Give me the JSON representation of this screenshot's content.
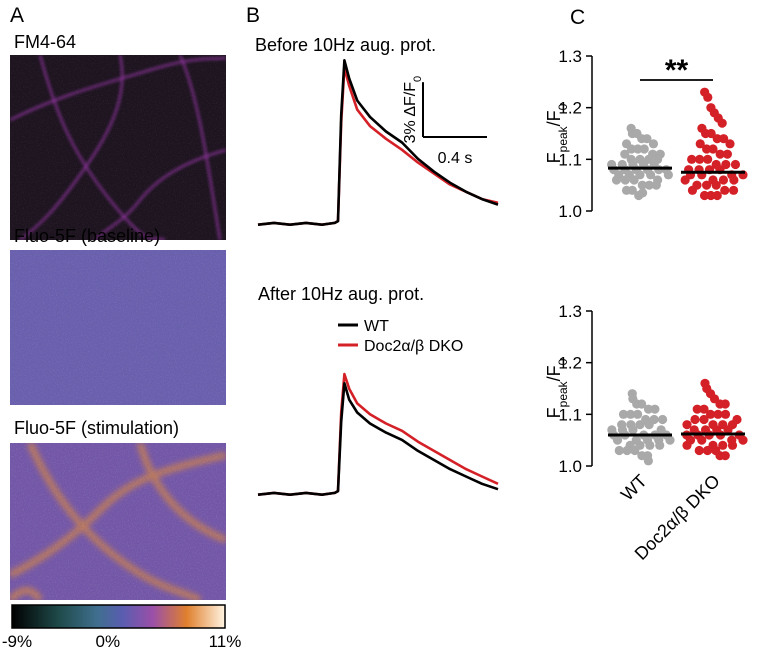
{
  "panels": {
    "a": "A",
    "b": "B",
    "c": "C"
  },
  "images": [
    {
      "title": "FM4-64"
    },
    {
      "title": "Fluo-5F (baseline)"
    },
    {
      "title": "Fluo-5F (stimulation)"
    }
  ],
  "colorbar": {
    "lim": [
      -9,
      11
    ],
    "ticks": [
      {
        "value": -9,
        "label": "-9%"
      },
      {
        "value": 0,
        "label": "0%"
      },
      {
        "value": 11,
        "label": "11%"
      }
    ]
  },
  "chart_data": [
    {
      "type": "line",
      "title": "Before 10Hz aug. prot.",
      "xlim": [
        0,
        1.5
      ],
      "ylim": [
        -1,
        10
      ],
      "x": [
        0,
        0.1,
        0.2,
        0.3,
        0.4,
        0.48,
        0.5,
        0.52,
        0.54,
        0.57,
        0.62,
        0.7,
        0.8,
        0.9,
        1.0,
        1.1,
        1.2,
        1.3,
        1.4,
        1.5
      ],
      "series": [
        {
          "color": "#d42027",
          "values": [
            0,
            0.1,
            0,
            0.1,
            0,
            0.1,
            0.2,
            5.6,
            8.6,
            7.6,
            6.3,
            5.4,
            4.7,
            4.1,
            3.4,
            2.8,
            2.2,
            1.8,
            1.4,
            1.2
          ]
        },
        {
          "color": "#000000",
          "values": [
            0,
            0.1,
            0,
            0.1,
            0,
            0.1,
            0.2,
            6,
            9,
            8,
            6.8,
            5.9,
            5.1,
            4.5,
            3.6,
            2.9,
            2.3,
            1.8,
            1.4,
            1.1
          ]
        }
      ],
      "scalebar": {
        "y": 3,
        "x": 0.4,
        "y_label": {
          "text": "3% ΔF/F",
          "sub": "0"
        },
        "x_label": "0.4 s"
      }
    },
    {
      "type": "line",
      "title": "After 10Hz aug. prot.",
      "xlim": [
        0,
        1.5
      ],
      "ylim": [
        -1,
        10
      ],
      "x": [
        0,
        0.1,
        0.2,
        0.3,
        0.4,
        0.48,
        0.5,
        0.52,
        0.54,
        0.57,
        0.62,
        0.7,
        0.8,
        0.9,
        1.0,
        1.1,
        1.2,
        1.3,
        1.4,
        1.5
      ],
      "legend": true,
      "series": [
        {
          "name": "Doc2α/β DKO",
          "color": "#d42027",
          "values": [
            0,
            0.1,
            0,
            0.1,
            0,
            0.1,
            0.2,
            4.5,
            6.6,
            5.8,
            5,
            4.4,
            3.9,
            3.5,
            2.9,
            2.4,
            1.9,
            1.4,
            1,
            0.6
          ]
        },
        {
          "name": "WT",
          "color": "#000000",
          "values": [
            0,
            0.1,
            0,
            0.1,
            0,
            0.1,
            0.2,
            4,
            6.1,
            5.2,
            4.5,
            3.9,
            3.4,
            3,
            2.4,
            1.9,
            1.4,
            1,
            0.6,
            0.3
          ]
        }
      ]
    },
    {
      "type": "strip",
      "ylabel": {
        "main": "F",
        "sub": "peak",
        "mid": "/F",
        "sub2": "0"
      },
      "ylim": [
        1.0,
        1.3
      ],
      "yticks": [
        {
          "value": 1,
          "label": "1.0"
        },
        1.1,
        1.2,
        1.3
      ],
      "annotation": "**",
      "series": [
        {
          "color": "#a9a9a9",
          "mean": 1.083,
          "values": [
            1.16,
            1.15,
            1.15,
            1.14,
            1.14,
            1.13,
            1.13,
            1.12,
            1.12,
            1.12,
            1.11,
            1.11,
            1.11,
            1.1,
            1.1,
            1.1,
            1.1,
            1.09,
            1.09,
            1.09,
            1.09,
            1.09,
            1.08,
            1.08,
            1.08,
            1.08,
            1.08,
            1.08,
            1.07,
            1.07,
            1.07,
            1.07,
            1.07,
            1.06,
            1.06,
            1.06,
            1.06,
            1.05,
            1.05,
            1.05,
            1.04,
            1.04,
            1.03,
            1.035
          ]
        },
        {
          "color": "#d42027",
          "mean": 1.075,
          "values": [
            1.23,
            1.22,
            1.2,
            1.19,
            1.18,
            1.17,
            1.16,
            1.15,
            1.15,
            1.14,
            1.14,
            1.13,
            1.13,
            1.12,
            1.12,
            1.11,
            1.11,
            1.1,
            1.1,
            1.1,
            1.09,
            1.09,
            1.09,
            1.08,
            1.08,
            1.08,
            1.08,
            1.07,
            1.07,
            1.07,
            1.07,
            1.06,
            1.06,
            1.06,
            1.06,
            1.05,
            1.05,
            1.05,
            1.04,
            1.04,
            1.04,
            1.03,
            1.03,
            1.03
          ]
        }
      ]
    },
    {
      "type": "strip",
      "ylabel": {
        "main": "F",
        "sub": "peak",
        "mid": "/F",
        "sub2": "0"
      },
      "ylim": [
        1.0,
        1.3
      ],
      "yticks": [
        {
          "value": 1,
          "label": "1.0"
        },
        1.1,
        1.2,
        1.3
      ],
      "categories": [
        "WT",
        "Doc2α/β DKO"
      ],
      "series": [
        {
          "color": "#a9a9a9",
          "mean": 1.06,
          "values": [
            1.14,
            1.13,
            1.12,
            1.12,
            1.11,
            1.11,
            1.1,
            1.1,
            1.1,
            1.09,
            1.09,
            1.09,
            1.08,
            1.08,
            1.08,
            1.08,
            1.07,
            1.07,
            1.07,
            1.07,
            1.06,
            1.06,
            1.06,
            1.06,
            1.06,
            1.05,
            1.05,
            1.05,
            1.05,
            1.05,
            1.04,
            1.04,
            1.04,
            1.04,
            1.03,
            1.03,
            1.03,
            1.02,
            1.02,
            1.01
          ]
        },
        {
          "color": "#d42027",
          "mean": 1.062,
          "values": [
            1.16,
            1.15,
            1.14,
            1.13,
            1.12,
            1.12,
            1.11,
            1.11,
            1.1,
            1.1,
            1.1,
            1.09,
            1.09,
            1.09,
            1.08,
            1.08,
            1.08,
            1.08,
            1.07,
            1.07,
            1.07,
            1.07,
            1.06,
            1.06,
            1.06,
            1.06,
            1.06,
            1.05,
            1.05,
            1.05,
            1.05,
            1.04,
            1.04,
            1.04,
            1.04,
            1.03,
            1.03,
            1.03,
            1.02,
            1.02
          ]
        }
      ]
    }
  ]
}
